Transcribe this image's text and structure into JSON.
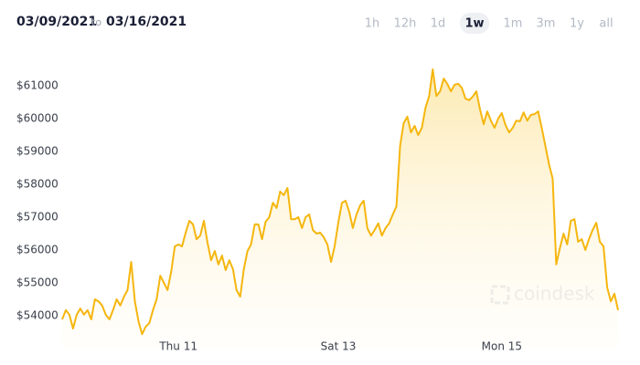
{
  "header": {
    "from": "03/09/2021",
    "to_word": "to",
    "to": "03/16/2021",
    "ranges": [
      "1h",
      "12h",
      "1d",
      "1w",
      "1m",
      "3m",
      "1y",
      "all"
    ],
    "active_range": "1w"
  },
  "chart_data": {
    "type": "line",
    "color": "#f5b60f",
    "area": true,
    "watermark": "coindesk",
    "values": [
      53890,
      54170,
      54030,
      53610,
      54030,
      54220,
      54030,
      54170,
      53890,
      54500,
      54440,
      54310,
      54030,
      53890,
      54170,
      54500,
      54310,
      54580,
      54780,
      55640,
      54440,
      53830,
      53440,
      53670,
      53780,
      54170,
      54500,
      55220,
      55000,
      54780,
      55330,
      56110,
      56170,
      56110,
      56530,
      56890,
      56780,
      56330,
      56440,
      56890,
      56220,
      55690,
      55970,
      55560,
      55830,
      55390,
      55690,
      55420,
      54780,
      54580,
      55420,
      55970,
      56170,
      56780,
      56780,
      56330,
      56860,
      57000,
      57440,
      57280,
      57780,
      57670,
      57890,
      56940,
      56940,
      57000,
      56670,
      57000,
      57080,
      56610,
      56500,
      56530,
      56390,
      56170,
      55640,
      56110,
      56830,
      57440,
      57500,
      57170,
      56670,
      57080,
      57360,
      57500,
      56670,
      56440,
      56610,
      56810,
      56440,
      56670,
      56810,
      57080,
      57330,
      59170,
      59860,
      60060,
      59580,
      59780,
      59500,
      59720,
      60330,
      60690,
      61500,
      60690,
      60830,
      61220,
      61060,
      60830,
      61030,
      61060,
      60940,
      60610,
      60560,
      60670,
      60830,
      60280,
      59830,
      60220,
      59940,
      59720,
      60000,
      60170,
      59810,
      59580,
      59720,
      59940,
      59920,
      60190,
      59940,
      60110,
      60140,
      60220,
      59720,
      59170,
      58610,
      58170,
      55560,
      56060,
      56500,
      56170,
      56890,
      56940,
      56250,
      56330,
      56000,
      56330,
      56610,
      56830,
      56250,
      56110,
      54860,
      54440,
      54670,
      54170
    ],
    "xlim": [
      0,
      153
    ],
    "xticks": [
      {
        "value": 32,
        "label": "Thu 11"
      },
      {
        "value": 76,
        "label": "Sat 13"
      },
      {
        "value": 121,
        "label": "Mon 15"
      }
    ],
    "ylim": [
      53000,
      62200
    ],
    "yticks": [
      {
        "value": 54000,
        "label": "$54000"
      },
      {
        "value": 55000,
        "label": "$55000"
      },
      {
        "value": 56000,
        "label": "$56000"
      },
      {
        "value": 57000,
        "label": "$57000"
      },
      {
        "value": 58000,
        "label": "$58000"
      },
      {
        "value": 59000,
        "label": "$59000"
      },
      {
        "value": 60000,
        "label": "$60000"
      },
      {
        "value": 61000,
        "label": "$61000"
      }
    ],
    "grid": false
  }
}
